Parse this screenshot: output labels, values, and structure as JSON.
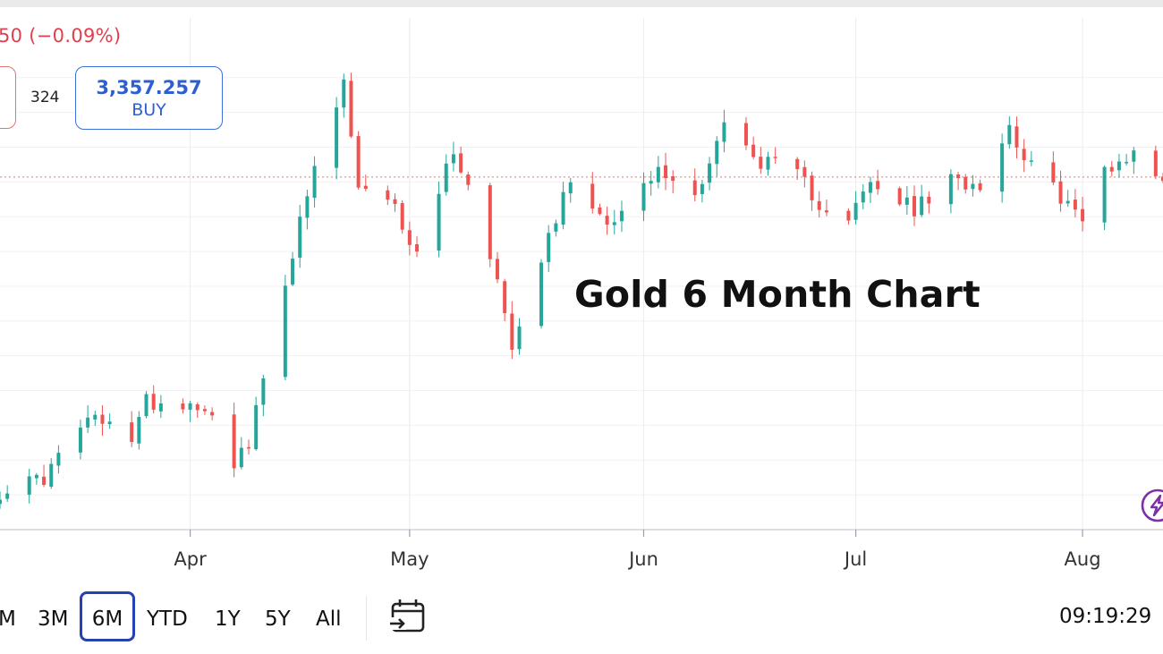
{
  "header": {
    "price_change": "50 (−0.09%)",
    "spread": "324",
    "buy_price": "3,357.257",
    "buy_label": "BUY"
  },
  "chart_title": "Gold 6 Month Chart",
  "chart_data": {
    "type": "candlestick",
    "title": "Gold 6 Month Chart",
    "x_tick_labels": [
      "Apr",
      "May",
      "Jun",
      "Jul",
      "Aug"
    ],
    "x_range": [
      "2025-03-06",
      "2025-08-12"
    ],
    "y_range": [
      2850,
      3510
    ],
    "reference_line": 3357,
    "grid": true,
    "up_color": "#26a69a",
    "down_color": "#ef5350",
    "series": [
      {
        "values": [
          {
            "x": "2025-03-06",
            "y": 2905
          },
          {
            "x": "2025-03-12",
            "y": 2925
          },
          {
            "x": "2025-03-18",
            "y": 3010
          },
          {
            "x": "2025-03-24",
            "y": 2985
          },
          {
            "x": "2025-03-26",
            "y": 3035
          },
          {
            "x": "2025-04-03",
            "y": 3030
          },
          {
            "x": "2025-04-07",
            "y": 2950
          },
          {
            "x": "2025-04-09",
            "y": 2970
          },
          {
            "x": "2025-04-14",
            "y": 3210
          },
          {
            "x": "2025-04-17",
            "y": 3330
          },
          {
            "x": "2025-04-22",
            "y": 3490
          },
          {
            "x": "2025-04-24",
            "y": 3340
          },
          {
            "x": "2025-04-29",
            "y": 3310
          },
          {
            "x": "2025-05-02",
            "y": 3245
          },
          {
            "x": "2025-05-07",
            "y": 3400
          },
          {
            "x": "2025-05-12",
            "y": 3250
          },
          {
            "x": "2025-05-15",
            "y": 3120
          },
          {
            "x": "2025-05-19",
            "y": 3245
          },
          {
            "x": "2025-05-23",
            "y": 3355
          },
          {
            "x": "2025-05-27",
            "y": 3305
          },
          {
            "x": "2025-05-29",
            "y": 3295
          },
          {
            "x": "2025-06-04",
            "y": 3365
          },
          {
            "x": "2025-06-09",
            "y": 3330
          },
          {
            "x": "2025-06-13",
            "y": 3435
          },
          {
            "x": "2025-06-17",
            "y": 3385
          },
          {
            "x": "2025-06-23",
            "y": 3360
          },
          {
            "x": "2025-06-26",
            "y": 3320
          },
          {
            "x": "2025-06-30",
            "y": 3300
          },
          {
            "x": "2025-07-03",
            "y": 3345
          },
          {
            "x": "2025-07-09",
            "y": 3310
          },
          {
            "x": "2025-07-14",
            "y": 3350
          },
          {
            "x": "2025-07-18",
            "y": 3350
          },
          {
            "x": "2025-07-22",
            "y": 3430
          },
          {
            "x": "2025-07-25",
            "y": 3370
          },
          {
            "x": "2025-07-30",
            "y": 3320
          },
          {
            "x": "2025-08-01",
            "y": 3290
          },
          {
            "x": "2025-08-04",
            "y": 3370
          },
          {
            "x": "2025-08-08",
            "y": 3390
          },
          {
            "x": "2025-08-11",
            "y": 3360
          }
        ]
      }
    ]
  },
  "range_buttons": [
    "M",
    "3M",
    "6M",
    "YTD",
    "1Y",
    "5Y",
    "All"
  ],
  "active_range": "6M",
  "clock": "09:19:29",
  "icons": {
    "date_range": "calendar-arrow-icon",
    "quick_action": "lightning-icon"
  }
}
